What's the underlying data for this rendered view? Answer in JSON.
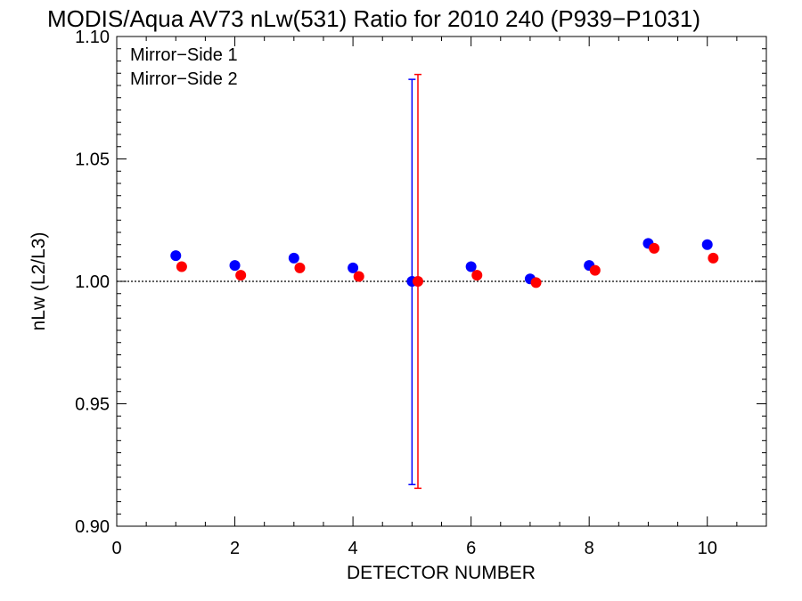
{
  "chart_data": {
    "type": "scatter",
    "title": "MODIS/Aqua AV73 nLw(531) Ratio for 2010 240 (P939−P1031)",
    "xlabel": "DETECTOR NUMBER",
    "ylabel": "nLw (L2/L3)",
    "xlim": [
      0,
      11
    ],
    "ylim": [
      0.9,
      1.1
    ],
    "x_ticks": [
      0,
      2,
      4,
      6,
      8,
      10
    ],
    "x_tick_labels": [
      "0",
      "2",
      "4",
      "6",
      "8",
      "10"
    ],
    "y_ticks": [
      0.9,
      0.95,
      1.0,
      1.05,
      1.1
    ],
    "y_tick_labels": [
      "0.90",
      "0.95",
      "1.00",
      "1.05",
      "1.10"
    ],
    "reference_line": {
      "y": 1.0,
      "style": "dotted"
    },
    "legend_position": "top-left",
    "series": [
      {
        "name": "Mirror−Side 1",
        "color": "#0000ff",
        "x": [
          1,
          2,
          3,
          4,
          5,
          6,
          7,
          8,
          9,
          10
        ],
        "y": [
          1.0105,
          1.0065,
          1.0095,
          1.0055,
          1.0,
          1.006,
          1.001,
          1.0065,
          1.0155,
          1.015
        ],
        "error_bars": [
          {
            "x": 5,
            "low": 0.917,
            "high": 1.0825
          }
        ]
      },
      {
        "name": "Mirror−Side 2",
        "color": "#ff0000",
        "x": [
          1.1,
          2.1,
          3.1,
          4.1,
          5.1,
          6.1,
          7.1,
          8.1,
          9.1,
          10.1
        ],
        "y": [
          1.006,
          1.0025,
          1.0055,
          1.002,
          1.0,
          1.0025,
          0.9995,
          1.0045,
          1.0135,
          1.0095
        ],
        "error_bars": [
          {
            "x": 5.1,
            "low": 0.9155,
            "high": 1.0845
          }
        ]
      }
    ]
  }
}
